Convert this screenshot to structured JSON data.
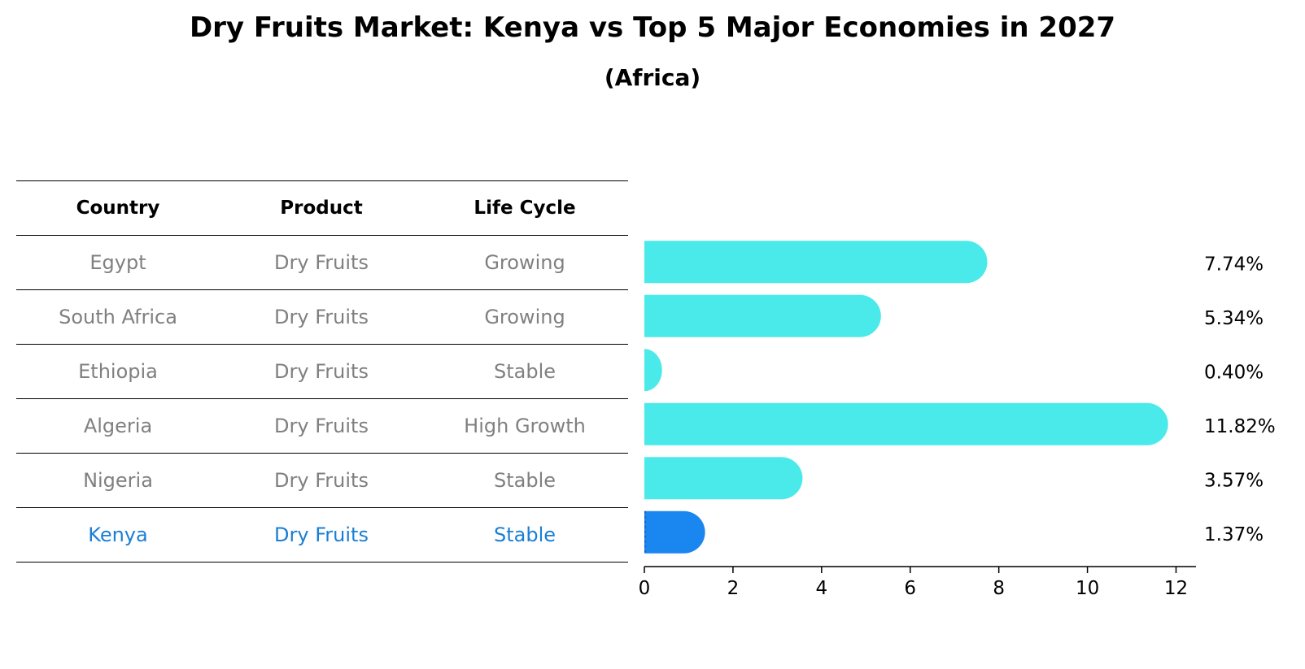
{
  "title": "Dry Fruits Market: Kenya vs Top 5 Major Economies in 2027",
  "subtitle": "(Africa)",
  "table": {
    "headers": [
      "Country",
      "Product",
      "Life Cycle"
    ],
    "rows": [
      {
        "country": "Egypt",
        "product": "Dry Fruits",
        "life_cycle": "Growing"
      },
      {
        "country": "South Africa",
        "product": "Dry Fruits",
        "life_cycle": "Growing"
      },
      {
        "country": "Ethiopia",
        "product": "Dry Fruits",
        "life_cycle": "Stable"
      },
      {
        "country": "Algeria",
        "product": "Dry Fruits",
        "life_cycle": "High Growth"
      },
      {
        "country": "Nigeria",
        "product": "Dry Fruits",
        "life_cycle": "Stable"
      },
      {
        "country": "Kenya",
        "product": "Dry Fruits",
        "life_cycle": "Stable"
      }
    ]
  },
  "colors": {
    "bar": "#4aeaea",
    "highlight_bar": "#1a87f0",
    "highlight_text": "#1a7fd6",
    "muted_text": "#808080"
  },
  "chart_data": {
    "type": "bar",
    "orientation": "horizontal",
    "categories": [
      "Egypt",
      "South Africa",
      "Ethiopia",
      "Algeria",
      "Nigeria",
      "Kenya"
    ],
    "values": [
      7.74,
      5.34,
      0.4,
      11.82,
      3.57,
      1.37
    ],
    "value_labels": [
      "7.74%",
      "5.34%",
      "0.40%",
      "11.82%",
      "3.57%",
      "1.37%"
    ],
    "highlight": "Kenya",
    "xlim": [
      0,
      12.45
    ],
    "xticks": [
      0,
      2,
      4,
      6,
      8,
      10,
      12
    ],
    "xlabel": "",
    "ylabel": ""
  }
}
